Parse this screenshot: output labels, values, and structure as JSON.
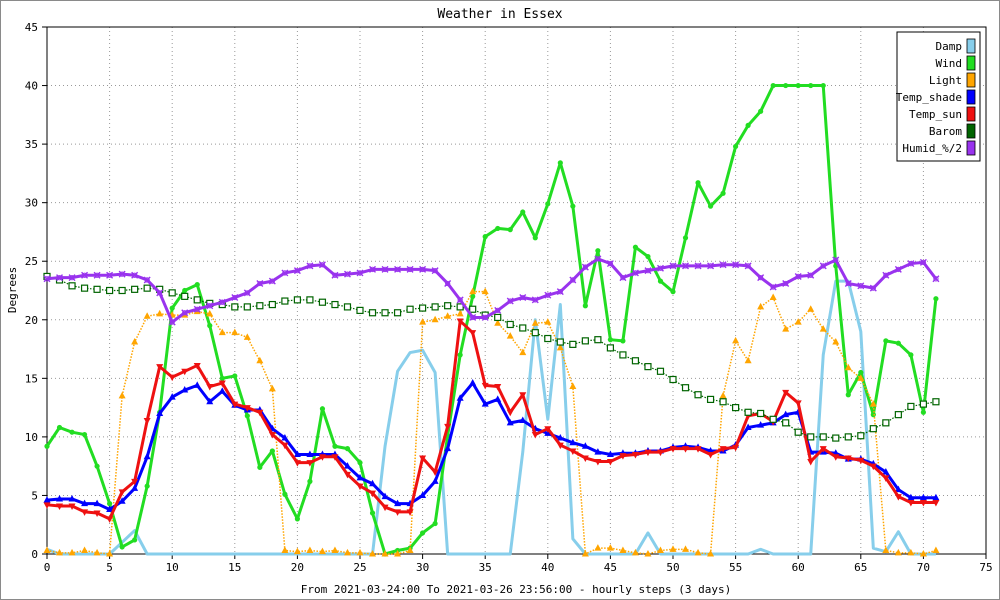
{
  "chart_data": {
    "type": "line",
    "title": "Weather in Essex",
    "xlabel": "From 2021-03-24:00 To 2021-03-26 23:56:00 - hourly steps (3 days)",
    "ylabel": "Degrees",
    "xlim": [
      0,
      75
    ],
    "ylim": [
      0,
      45
    ],
    "xticks": [
      0,
      5,
      10,
      15,
      20,
      25,
      30,
      35,
      40,
      45,
      50,
      55,
      60,
      65,
      70,
      75
    ],
    "yticks": [
      0,
      5,
      10,
      15,
      20,
      25,
      30,
      35,
      40,
      45
    ],
    "grid": true,
    "legend_position": "top-right",
    "x": [
      0,
      1,
      2,
      3,
      4,
      5,
      6,
      7,
      8,
      9,
      10,
      11,
      12,
      13,
      14,
      15,
      16,
      17,
      18,
      19,
      20,
      21,
      22,
      23,
      24,
      25,
      26,
      27,
      28,
      29,
      30,
      31,
      32,
      33,
      34,
      35,
      36,
      37,
      38,
      39,
      40,
      41,
      42,
      43,
      44,
      45,
      46,
      47,
      48,
      49,
      50,
      51,
      52,
      53,
      54,
      55,
      56,
      57,
      58,
      59,
      60,
      61,
      62,
      63,
      64,
      65,
      66,
      67,
      68,
      69,
      70,
      71
    ],
    "series": [
      {
        "name": "Damp",
        "color": "#87ceeb",
        "marker": "none",
        "values": [
          0.4,
          0,
          0,
          0,
          0,
          0,
          1,
          2,
          0,
          0,
          0,
          0,
          0,
          0,
          0,
          0,
          0,
          0,
          0,
          0,
          0,
          0,
          0,
          0,
          0,
          0,
          0,
          9.2,
          15.6,
          17.2,
          17.4,
          15.5,
          0,
          0,
          0,
          0,
          0,
          0,
          8.7,
          20,
          11.5,
          21.3,
          1.3,
          0,
          0,
          0,
          0,
          0,
          1.8,
          0,
          0,
          0,
          0,
          0,
          0,
          0,
          0,
          0.4,
          0,
          0,
          0,
          0,
          17,
          23.3,
          23.3,
          19,
          0.5,
          0.2,
          1.9,
          0,
          0,
          0
        ]
      },
      {
        "name": "Wind",
        "color": "#22dd22",
        "marker": "circle",
        "values": [
          9.2,
          10.8,
          10.4,
          10.2,
          7.5,
          4.3,
          0.6,
          1.2,
          5.8,
          12.1,
          21,
          22.5,
          23,
          19.5,
          15,
          15.2,
          11.8,
          7.4,
          8.8,
          5.1,
          3,
          6.2,
          12.4,
          9.2,
          9,
          7.8,
          3.5,
          0,
          0.3,
          0.5,
          1.8,
          2.6,
          10.1,
          17,
          22,
          27.1,
          27.8,
          27.7,
          29.2,
          27,
          29.9,
          33.4,
          29.7,
          21.2,
          25.9,
          18.3,
          18.2,
          26.2,
          25.4,
          23.3,
          22.4,
          27,
          31.7,
          29.7,
          30.8,
          34.8,
          36.6,
          37.8,
          40,
          40,
          40,
          40,
          40,
          24.6,
          13.6,
          15.5,
          11.9,
          18.2,
          18,
          17,
          12.1,
          21.8
        ]
      },
      {
        "name": "Light",
        "color": "#ffa500",
        "marker": "triangle-up",
        "values": [
          0.3,
          0.1,
          0.1,
          0.3,
          0.1,
          0,
          13.5,
          18.1,
          20.3,
          20.5,
          20.4,
          20.4,
          20.7,
          20.5,
          18.9,
          18.9,
          18.5,
          16.5,
          14.1,
          0.3,
          0.2,
          0.3,
          0.2,
          0.3,
          0.1,
          0.1,
          0,
          0,
          0,
          0.3,
          19.8,
          20,
          20.3,
          20.5,
          22.4,
          22.4,
          19.7,
          18.6,
          17.2,
          19.7,
          19.8,
          17.6,
          14.3,
          0,
          0.5,
          0.5,
          0.3,
          0.1,
          0,
          0.3,
          0.4,
          0.4,
          0.1,
          0,
          13.5,
          18.2,
          16.5,
          21.1,
          21.9,
          19.2,
          19.8,
          20.9,
          19.2,
          18.1,
          15.9,
          15,
          12.8,
          0.3,
          0.1,
          0.1,
          0,
          0.3
        ]
      },
      {
        "name": "Temp_shade",
        "color": "#0000ff",
        "marker": "triangle-up",
        "values": [
          4.6,
          4.7,
          4.7,
          4.3,
          4.3,
          3.8,
          4.5,
          5.6,
          8.3,
          12,
          13.4,
          14,
          14.4,
          13,
          13.9,
          12.7,
          12.3,
          12.3,
          10.7,
          9.9,
          8.5,
          8.5,
          8.5,
          8.5,
          7.5,
          6.5,
          6,
          4.9,
          4.3,
          4.3,
          5,
          6.2,
          9,
          13.3,
          14.6,
          12.8,
          13.2,
          11.2,
          11.4,
          10.7,
          10.3,
          9.9,
          9.5,
          9.2,
          8.7,
          8.5,
          8.6,
          8.6,
          8.8,
          8.8,
          9.1,
          9.2,
          9.1,
          8.8,
          8.8,
          9.3,
          10.8,
          11,
          11.2,
          11.9,
          12.1,
          8.7,
          8.7,
          8.6,
          8.1,
          8.1,
          7.7,
          7,
          5.5,
          4.8,
          4.8,
          4.8
        ]
      },
      {
        "name": "Temp_sun",
        "color": "#ee1111",
        "marker": "triangle-down",
        "values": [
          4.2,
          4.1,
          4.1,
          3.6,
          3.5,
          3,
          5.3,
          6.2,
          11.4,
          16,
          15.1,
          15.6,
          16.1,
          14.3,
          14.6,
          12.8,
          12.5,
          12.1,
          10.2,
          9.3,
          7.8,
          7.8,
          8.3,
          8.3,
          6.8,
          5.8,
          5.2,
          4,
          3.6,
          3.6,
          8.2,
          7,
          10.9,
          19.9,
          18.9,
          14.4,
          14.3,
          12.1,
          13.6,
          10.2,
          10.7,
          9.3,
          8.8,
          8.2,
          7.9,
          7.9,
          8.4,
          8.5,
          8.7,
          8.7,
          9,
          9,
          9,
          8.5,
          9,
          9.1,
          11.8,
          12,
          11.3,
          13.8,
          12.9,
          7.9,
          9,
          8.3,
          8.2,
          8,
          7.5,
          6.5,
          4.9,
          4.4,
          4.4,
          4.4
        ]
      },
      {
        "name": "Barom",
        "color": "#006400",
        "marker": "square",
        "values": [
          23.7,
          23.4,
          22.9,
          22.7,
          22.6,
          22.5,
          22.5,
          22.6,
          22.7,
          22.6,
          22.3,
          22,
          21.7,
          21.4,
          21.3,
          21.1,
          21.1,
          21.2,
          21.3,
          21.6,
          21.7,
          21.7,
          21.5,
          21.3,
          21.1,
          20.8,
          20.6,
          20.6,
          20.6,
          20.9,
          21,
          21.1,
          21.2,
          21.1,
          20.9,
          20.4,
          20.2,
          19.6,
          19.3,
          18.9,
          18.4,
          18.1,
          17.9,
          18.2,
          18.3,
          17.6,
          17,
          16.5,
          16,
          15.6,
          14.9,
          14.2,
          13.6,
          13.2,
          13,
          12.5,
          12.1,
          12,
          11.5,
          11.2,
          10.4,
          10,
          10,
          9.9,
          10,
          10.1,
          10.7,
          11.2,
          11.9,
          12.6,
          12.8,
          13
        ]
      },
      {
        "name": "Humid_%/2",
        "color": "#9933ee",
        "marker": "cross",
        "values": [
          23.5,
          23.6,
          23.6,
          23.8,
          23.8,
          23.8,
          23.9,
          23.8,
          23.4,
          22.3,
          19.8,
          20.6,
          20.9,
          21.2,
          21.5,
          21.9,
          22.3,
          23.1,
          23.3,
          24,
          24.2,
          24.6,
          24.7,
          23.8,
          23.9,
          24,
          24.3,
          24.3,
          24.3,
          24.3,
          24.3,
          24.2,
          23.1,
          21.7,
          20.2,
          20.2,
          20.8,
          21.6,
          21.9,
          21.7,
          22.1,
          22.4,
          23.4,
          24.5,
          25.2,
          24.8,
          23.6,
          24,
          24.2,
          24.4,
          24.6,
          24.6,
          24.6,
          24.6,
          24.7,
          24.7,
          24.6,
          23.6,
          22.8,
          23.1,
          23.7,
          23.8,
          24.6,
          25.1,
          23.1,
          22.9,
          22.7,
          23.8,
          24.3,
          24.8,
          24.9,
          23.5
        ]
      }
    ]
  }
}
